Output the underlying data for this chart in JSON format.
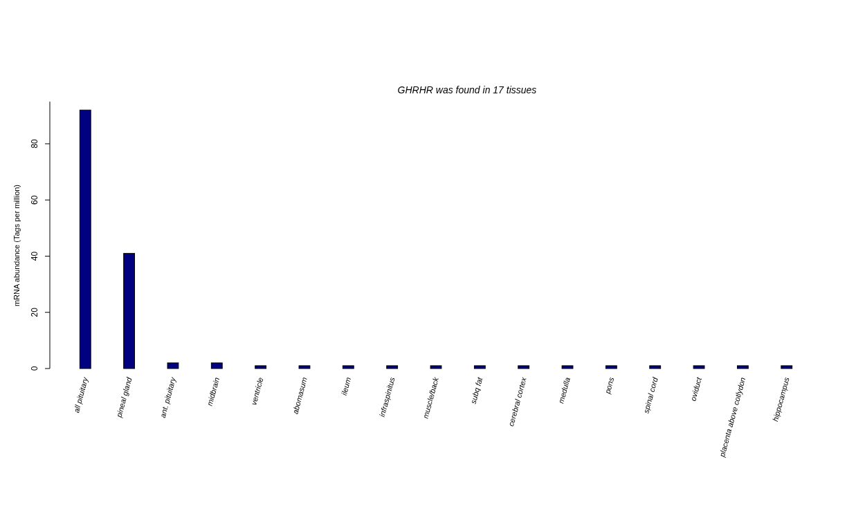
{
  "chart_data": {
    "type": "bar",
    "title": "GHRHR  was found in  17  tissues",
    "ylabel": "mRNA abundance (Tags per million)",
    "categories": [
      "all pituitary",
      "pineal gland",
      "ant. pituitary",
      "midbrain",
      "ventricle",
      "abomasum",
      "ileum",
      "infraspinitus",
      "muscle/back",
      "subq fat",
      "cerebral cortex",
      "medulla",
      "pons",
      "spinal cord",
      "oviduct",
      "placenta above cotlydon",
      "hippocampus"
    ],
    "values": [
      92,
      41,
      2,
      2,
      1,
      1,
      1,
      1,
      1,
      1,
      1,
      1,
      1,
      1,
      1,
      1,
      1
    ],
    "color": "#000080",
    "ylim": [
      0,
      95
    ],
    "yticks": [
      0,
      20,
      40,
      60,
      80
    ],
    "grid": false
  }
}
